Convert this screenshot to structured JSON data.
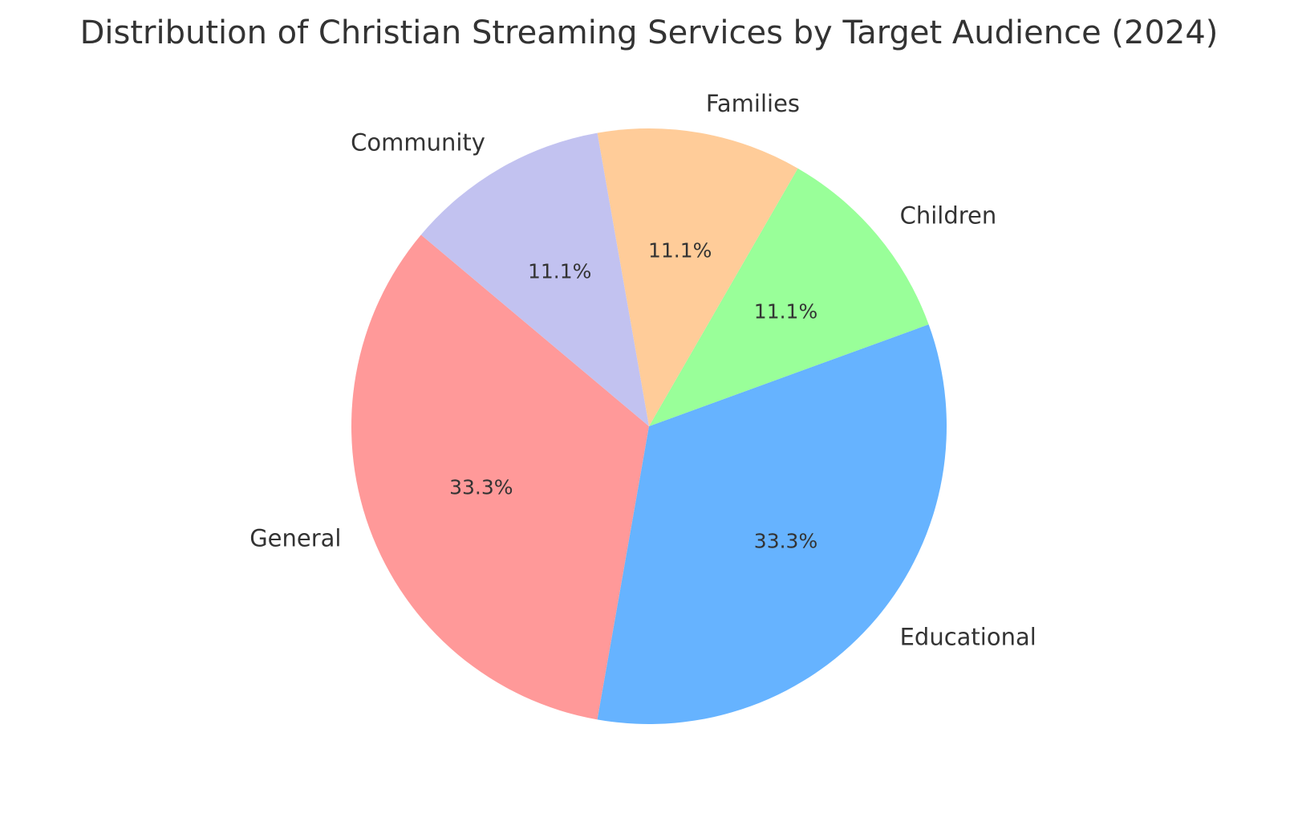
{
  "chart_data": {
    "type": "pie",
    "title": "Distribution of Christian Streaming Services by Target Audience (2024)",
    "categories": [
      "General",
      "Educational",
      "Children",
      "Families",
      "Community"
    ],
    "values": [
      33.3,
      33.3,
      11.1,
      11.1,
      11.1
    ],
    "percent_labels": [
      "33.3%",
      "33.3%",
      "11.1%",
      "11.1%",
      "11.1%"
    ],
    "colors": [
      "#ff9999",
      "#66b3ff",
      "#99ff99",
      "#ffcc99",
      "#c2c2f0"
    ],
    "start_angle_deg": 140,
    "direction": "counterclockwise",
    "legend": "none"
  }
}
